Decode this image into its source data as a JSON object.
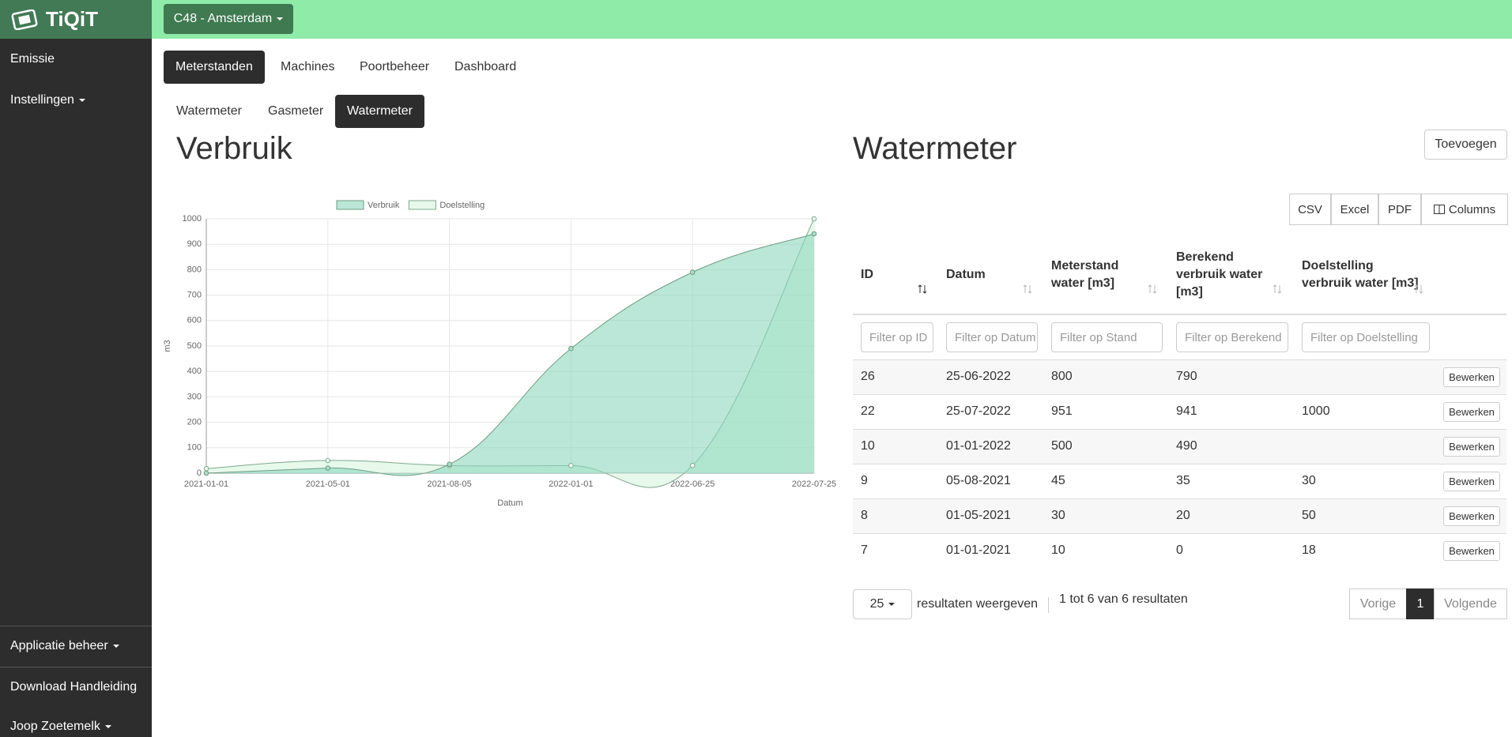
{
  "app": {
    "logo": "TiQiT",
    "location_menu": "C48 - Amsterdam"
  },
  "sidebar": {
    "top": [
      "Emissie",
      "Instellingen"
    ],
    "bottom": [
      "Applicatie beheer",
      "Download Handleiding",
      "Joop Zoetemelk"
    ]
  },
  "nav_tabs": [
    "Meterstanden",
    "Machines",
    "Poortbeheer",
    "Dashboard"
  ],
  "sub_tabs": [
    "Watermeter",
    "Gasmeter",
    "Watermeter"
  ],
  "left_heading": "Verbruik",
  "right_heading": "Watermeter",
  "add_button": "Toevoegen",
  "export_buttons": [
    "CSV",
    "Excel",
    "PDF",
    "Columns"
  ],
  "chart_data": {
    "type": "line",
    "x_label": "Datum",
    "y_label": "m3",
    "categories": [
      "2021-01-01",
      "2021-05-01",
      "2021-08-05",
      "2022-01-01",
      "2022-06-25",
      "2022-07-25"
    ],
    "series": [
      {
        "name": "Verbruik",
        "color": "#6f9d85",
        "fill": "rgba(140,215,190,0.6)",
        "values": [
          0,
          20,
          35,
          490,
          790,
          941
        ]
      },
      {
        "name": "Doelstelling",
        "color": "#7fa88f",
        "fill": "rgba(215,245,222,0.6)",
        "values": [
          18,
          50,
          30,
          30,
          30,
          1000
        ]
      }
    ],
    "ylim": [
      0,
      1000
    ],
    "yticks": [
      0,
      100,
      200,
      300,
      400,
      500,
      600,
      700,
      800,
      900,
      1000
    ],
    "grid": true,
    "legend": "top"
  },
  "table": {
    "columns": [
      "ID",
      "Datum",
      "Meterstand water [m3]",
      "Berekend verbruik water [m3]",
      "Doelstelling verbruik water [m3]"
    ],
    "filters": [
      "Filter op ID",
      "Filter op Datum",
      "Filter op Stand",
      "Filter op Berekend",
      "Filter op Doelstelling"
    ],
    "rows": [
      [
        "26",
        "25-06-2022",
        "800",
        "790",
        null
      ],
      [
        "22",
        "25-07-2022",
        "951",
        "941",
        "1000"
      ],
      [
        "10",
        "01-01-2022",
        "500",
        "490",
        null
      ],
      [
        "9",
        "05-08-2021",
        "45",
        "35",
        "30"
      ],
      [
        "8",
        "01-05-2021",
        "30",
        "20",
        "50"
      ],
      [
        "7",
        "01-01-2021",
        "10",
        "0",
        "18"
      ]
    ],
    "action_label": "Bewerken"
  },
  "pagination": {
    "page_size": "25",
    "page_size_label": "resultaten weergeven",
    "info": "1 tot 6 van 6 resultaten",
    "prev": "Vorige",
    "current": "1",
    "next": "Volgende"
  }
}
